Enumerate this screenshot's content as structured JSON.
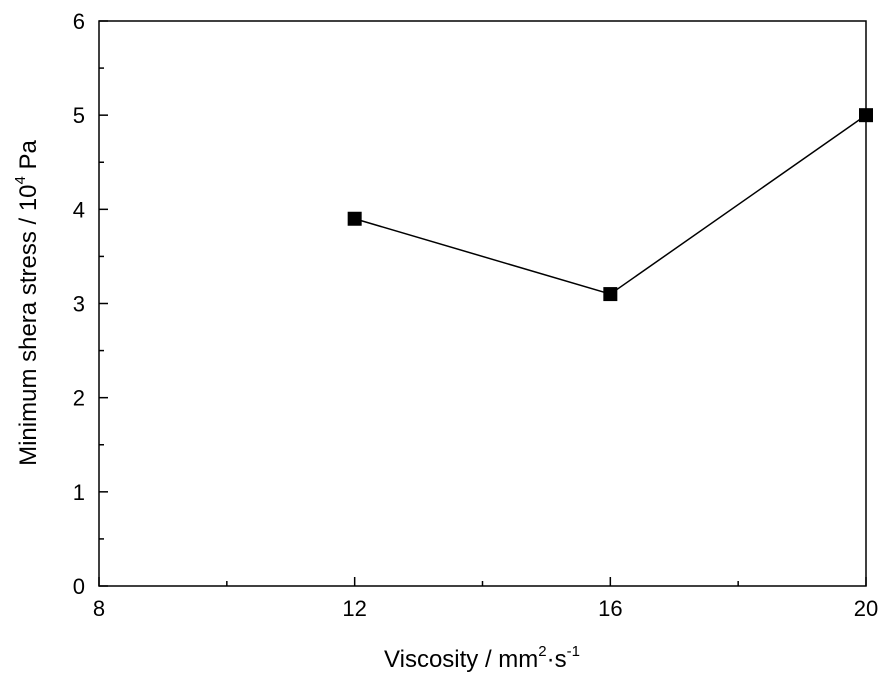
{
  "chart_data": {
    "type": "line",
    "x": [
      12,
      16,
      20
    ],
    "series": [
      {
        "values": [
          3.9,
          3.1,
          5.0
        ],
        "color": "#000000",
        "marker": "square"
      }
    ],
    "xlabel": {
      "prefix": "Viscosity  / mm",
      "sup1": "2",
      "middle": "·s",
      "sup2": "-1"
    },
    "ylabel": {
      "prefix": "Minimum shera stress / 10",
      "sup": "4",
      "suffix": " Pa"
    },
    "xlim": [
      8,
      20
    ],
    "ylim": [
      0,
      6
    ],
    "xticks": [
      "8",
      "12",
      "16",
      "20"
    ],
    "yticks": [
      "0",
      "1",
      "2",
      "3",
      "4",
      "5",
      "6"
    ],
    "grid": false,
    "legend": "none"
  }
}
